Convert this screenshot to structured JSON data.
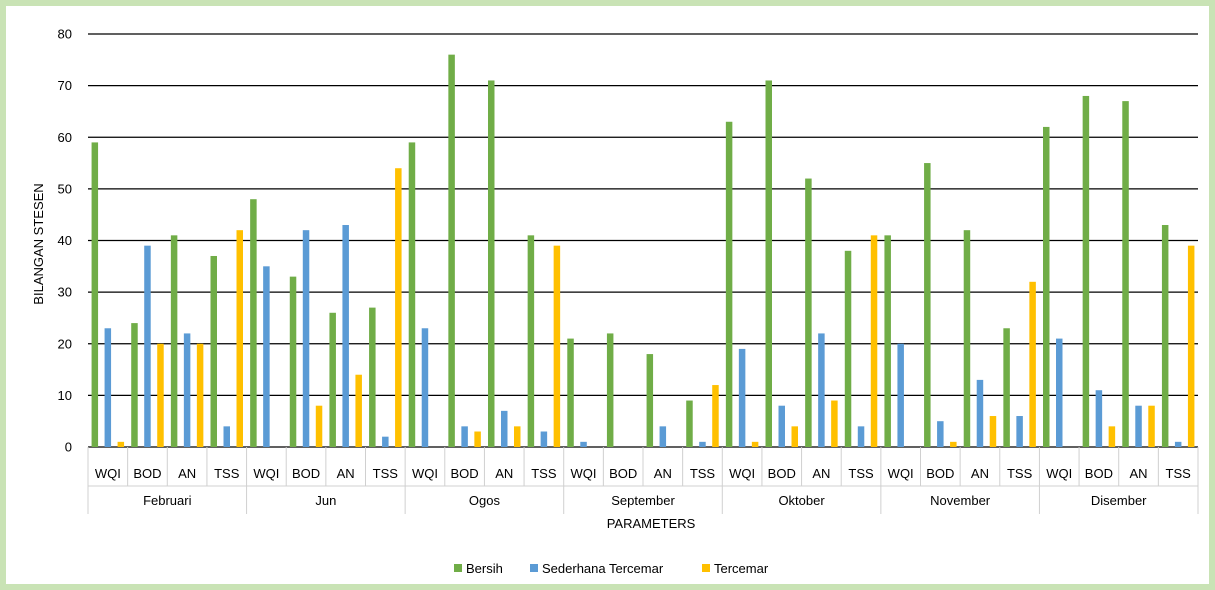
{
  "chart_data": {
    "type": "bar",
    "title": "",
    "xlabel": "PARAMETERS",
    "ylabel": "BILANGAN STESEN",
    "ylim": [
      0,
      80
    ],
    "yticks": [
      0,
      10,
      20,
      30,
      40,
      50,
      60,
      70,
      80
    ],
    "grid": true,
    "legend_position": "bottom",
    "groups": [
      "Februari",
      "Jun",
      "Ogos",
      "September",
      "Oktober",
      "November",
      "Disember"
    ],
    "parameters": [
      "WQI",
      "BOD",
      "AN",
      "TSS"
    ],
    "categories": [
      "Februari WQI",
      "Februari BOD",
      "Februari AN",
      "Februari TSS",
      "Jun WQI",
      "Jun BOD",
      "Jun AN",
      "Jun TSS",
      "Ogos WQI",
      "Ogos BOD",
      "Ogos AN",
      "Ogos TSS",
      "September WQI",
      "September BOD",
      "September AN",
      "September TSS",
      "Oktober WQI",
      "Oktober BOD",
      "Oktober AN",
      "Oktober TSS",
      "November WQI",
      "November BOD",
      "November AN",
      "November TSS",
      "Disember WQI",
      "Disember BOD",
      "Disember AN",
      "Disember TSS"
    ],
    "series": [
      {
        "name": "Bersih",
        "color": "#70ad47",
        "values": [
          59,
          24,
          41,
          37,
          48,
          33,
          26,
          27,
          59,
          76,
          71,
          41,
          21,
          22,
          18,
          9,
          63,
          71,
          52,
          38,
          41,
          55,
          42,
          23,
          62,
          68,
          67,
          43
        ]
      },
      {
        "name": "Sederhana Tercemar",
        "color": "#5b9bd5",
        "values": [
          23,
          39,
          22,
          4,
          35,
          42,
          43,
          2,
          23,
          4,
          7,
          3,
          1,
          0,
          4,
          1,
          19,
          8,
          22,
          4,
          20,
          5,
          13,
          6,
          21,
          11,
          8,
          1
        ]
      },
      {
        "name": "Tercemar",
        "color": "#ffc000",
        "values": [
          1,
          20,
          20,
          42,
          0,
          8,
          14,
          54,
          0,
          3,
          4,
          39,
          0,
          0,
          0,
          12,
          1,
          4,
          9,
          41,
          0,
          1,
          6,
          32,
          0,
          4,
          8,
          39
        ]
      }
    ]
  }
}
